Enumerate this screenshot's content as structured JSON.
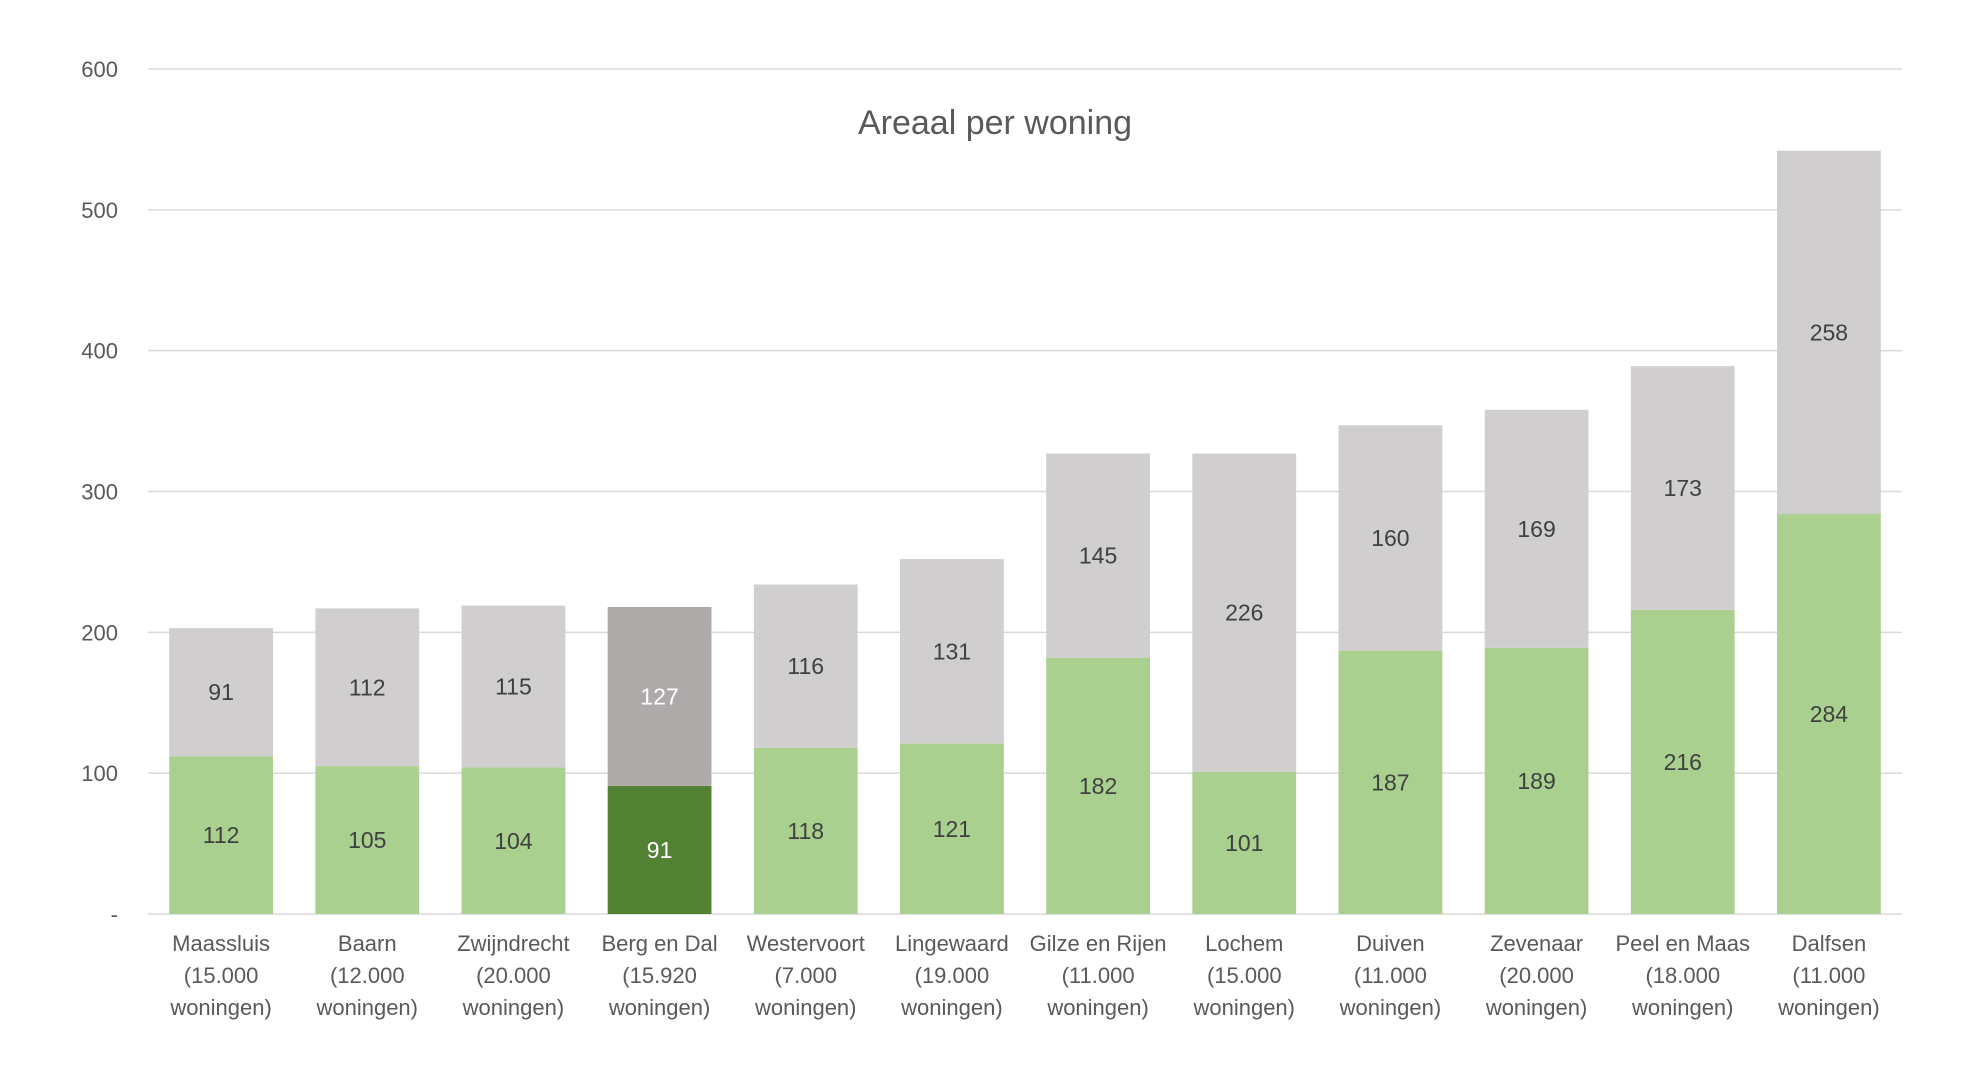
{
  "chart_data": {
    "type": "bar",
    "stacked": true,
    "title": "Areaal per woning",
    "xlabel": "",
    "ylabel": "",
    "ylim": [
      0,
      600
    ],
    "yticks": [
      "-",
      "100",
      "200",
      "300",
      "400",
      "500",
      "600"
    ],
    "ytick_values": [
      0,
      100,
      200,
      300,
      400,
      500,
      600
    ],
    "grid": true,
    "categories": [
      [
        "Maassluis",
        "(15.000",
        "woningen)"
      ],
      [
        "Baarn",
        "(12.000",
        "woningen)"
      ],
      [
        "Zwijndrecht",
        "(20.000",
        "woningen)"
      ],
      [
        "Berg en Dal",
        "(15.920",
        "woningen)"
      ],
      [
        "Westervoort",
        "(7.000",
        "woningen)"
      ],
      [
        "Lingewaard",
        "(19.000",
        "woningen)"
      ],
      [
        "Gilze en Rijen",
        "(11.000",
        "woningen)"
      ],
      [
        "Lochem",
        "(15.000",
        "woningen)"
      ],
      [
        "Duiven",
        "(11.000",
        "woningen)"
      ],
      [
        "Zevenaar",
        "(20.000",
        "woningen)"
      ],
      [
        "Peel en Maas",
        "(18.000",
        "woningen)"
      ],
      [
        "Dalfsen",
        "(11.000",
        "woningen)"
      ]
    ],
    "highlight_index": 3,
    "series": [
      {
        "name": "green",
        "values": [
          112,
          105,
          104,
          91,
          118,
          121,
          182,
          101,
          187,
          189,
          216,
          284
        ],
        "color": "#a9d08e",
        "highlight_color": "#548235",
        "label_color": "#404040",
        "highlight_label_color": "#ffffff"
      },
      {
        "name": "grey",
        "values": [
          91,
          112,
          115,
          127,
          116,
          131,
          145,
          226,
          160,
          169,
          173,
          258
        ],
        "color": "#d0cece",
        "highlight_color": "#aeaaaa",
        "label_color": "#404040",
        "highlight_label_color": "#ffffff"
      }
    ],
    "gridline_color": "#d9d9d9"
  }
}
